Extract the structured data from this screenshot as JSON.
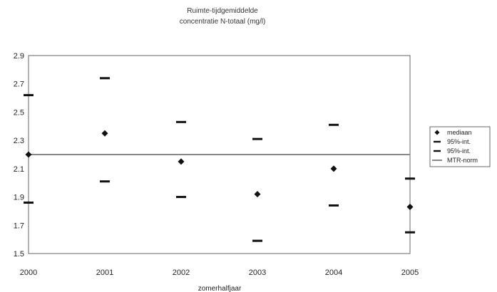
{
  "chart_data": {
    "type": "scatter",
    "title": "Ruimte-tijdgemiddelde",
    "subtitle": "concentratie N-totaal (mg/l)",
    "xlabel": "zomerhalfjaar",
    "ylabel": "",
    "xlim": [
      2000,
      2005
    ],
    "ylim": [
      1.5,
      2.9
    ],
    "x_ticks": [
      "2000",
      "2001",
      "2002",
      "2003",
      "2004",
      "2005"
    ],
    "y_ticks": [
      "2.9",
      "2.7",
      "2.5",
      "2.3",
      "2.1",
      "1.9",
      "1.7",
      "1.5"
    ],
    "grid": false,
    "legend_position": "right",
    "series": [
      {
        "name": "mediaan",
        "marker": "diamond",
        "x": [
          2000,
          2001,
          2002,
          2003,
          2004,
          2005
        ],
        "values": [
          2.2,
          2.35,
          2.15,
          1.92,
          2.1,
          1.83
        ]
      },
      {
        "name": "95%-int.",
        "marker": "dash",
        "x": [
          2000,
          2001,
          2002,
          2003,
          2004,
          2005
        ],
        "values": [
          2.62,
          2.74,
          2.43,
          2.31,
          2.41,
          2.03
        ]
      },
      {
        "name": "95%-int.",
        "marker": "dash",
        "x": [
          2000,
          2001,
          2002,
          2003,
          2004,
          2005
        ],
        "values": [
          1.86,
          2.01,
          1.9,
          1.59,
          1.84,
          1.65
        ]
      },
      {
        "name": "MTR-norm",
        "marker": "line",
        "values": [
          2.2
        ]
      }
    ]
  }
}
